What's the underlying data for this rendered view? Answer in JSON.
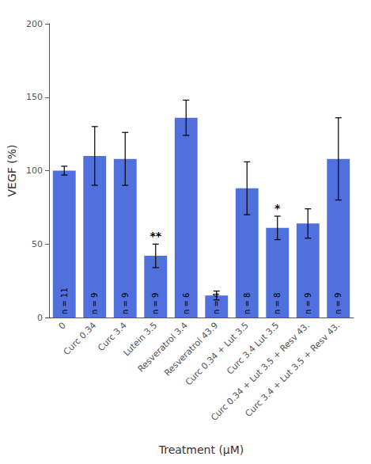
{
  "chart_data": {
    "type": "bar",
    "xlabel": "Treatment (μM)",
    "ylabel": "VEGF (%)",
    "categories": [
      "0",
      "Curc 0.34",
      "Curc 3.4",
      "Lutein 3.5",
      "Resveratrol 3.4",
      "Resveratrol 43.9",
      "Curc 0.34 + Lut 3.5",
      "Curc 3.4 Lut 3.5",
      "Curc 0.34 + Lut 3.5 + Resv 43.",
      "Curc 3.4 + Lut 3.5 + Resv 43."
    ],
    "values": [
      100,
      110,
      108,
      42,
      136,
      15,
      88,
      61,
      64,
      108
    ],
    "errors": [
      3,
      20,
      18,
      8,
      12,
      3,
      18,
      8,
      10,
      28
    ],
    "n_labels": [
      "n = 11",
      "n = 9",
      "n = 9",
      "n = 9",
      "n = 6",
      "n = 4",
      "n = 8",
      "n = 8",
      "n = 9",
      "n = 9"
    ],
    "significance": [
      null,
      null,
      null,
      "**",
      null,
      null,
      null,
      "*",
      null,
      null
    ],
    "ylim": [
      0,
      200
    ],
    "yticks": [
      0,
      50,
      100,
      150,
      200
    ],
    "grid": false
  }
}
